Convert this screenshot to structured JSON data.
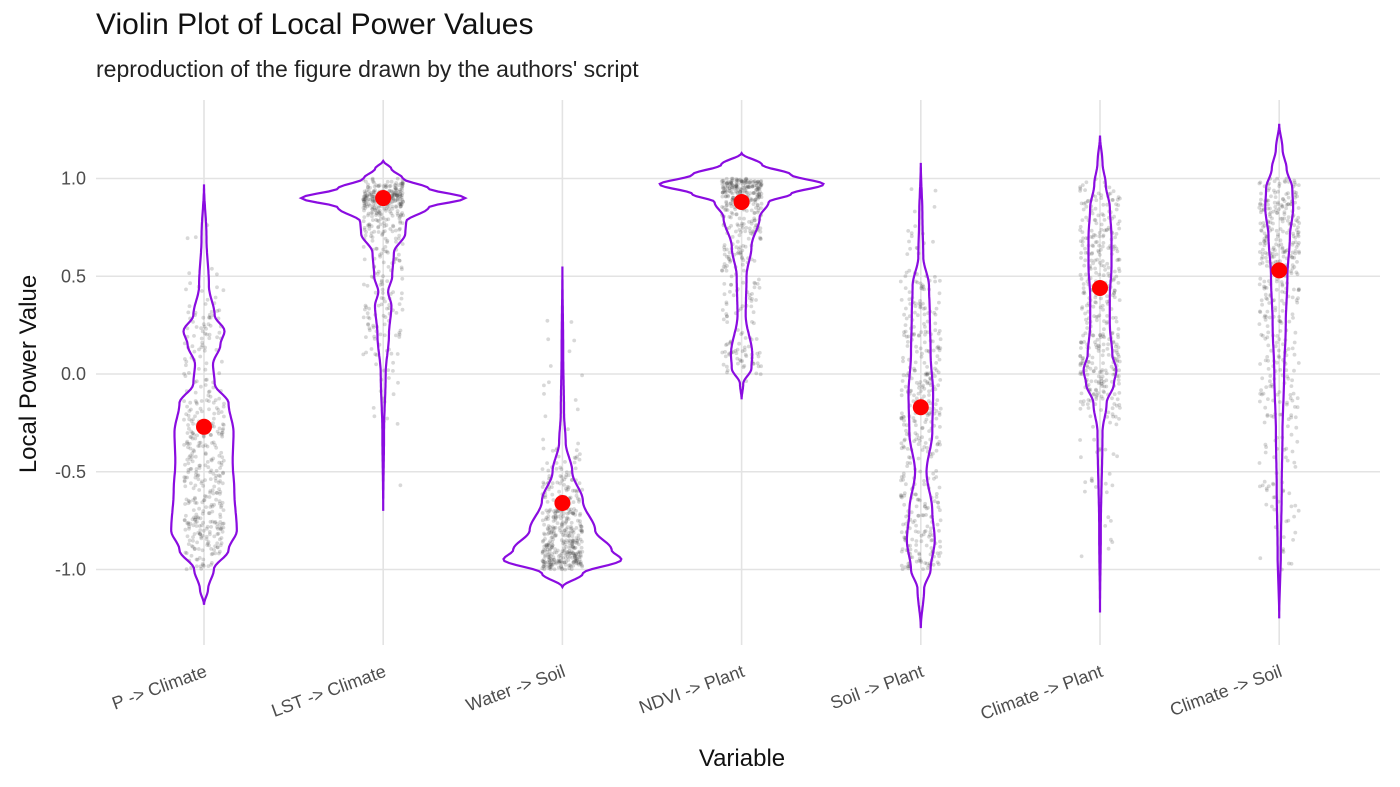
{
  "chart_data": {
    "type": "violin",
    "title": "Violin Plot of Local Power Values",
    "subtitle": "reproduction of the figure drawn by the authors' script",
    "xlabel": "Variable",
    "ylabel": "Local Power Value",
    "ylim": [
      -1.45,
      1.4
    ],
    "yticks": [
      -1.0,
      -0.5,
      0.0,
      0.5,
      1.0
    ],
    "ytick_labels": [
      "-1.0",
      "-0.5",
      "0.0",
      "0.5",
      "1.0"
    ],
    "grid": true,
    "colors": {
      "violin": "#8a0ce0",
      "mean": "#ff0000",
      "points": "#3a3a3a",
      "grid": "#e3e3e3"
    },
    "categories": [
      "P -> Climate",
      "LST -> Climate",
      "Water -> Soil",
      "NDVI -> Plant",
      "Soil -> Plant",
      "Climate -> Plant",
      "Climate -> Soil"
    ],
    "means": [
      -0.27,
      0.9,
      -0.66,
      0.88,
      -0.17,
      0.44,
      0.53
    ],
    "violins": [
      {
        "ymin": -1.18,
        "ymax": 0.97,
        "width_profile": [
          [
            -1.18,
            0.0
          ],
          [
            -1.1,
            0.05
          ],
          [
            -1.0,
            0.12
          ],
          [
            -0.9,
            0.3
          ],
          [
            -0.8,
            0.4
          ],
          [
            -0.6,
            0.37
          ],
          [
            -0.45,
            0.35
          ],
          [
            -0.3,
            0.36
          ],
          [
            -0.15,
            0.3
          ],
          [
            -0.05,
            0.13
          ],
          [
            0.05,
            0.11
          ],
          [
            0.15,
            0.2
          ],
          [
            0.22,
            0.25
          ],
          [
            0.3,
            0.13
          ],
          [
            0.45,
            0.06
          ],
          [
            0.7,
            0.03
          ],
          [
            0.97,
            0.0
          ]
        ]
      },
      {
        "ymin": -0.7,
        "ymax": 1.09,
        "width_profile": [
          [
            -0.7,
            0.0
          ],
          [
            -0.3,
            0.01
          ],
          [
            0.0,
            0.03
          ],
          [
            0.2,
            0.07
          ],
          [
            0.35,
            0.1
          ],
          [
            0.42,
            0.06
          ],
          [
            0.5,
            0.11
          ],
          [
            0.62,
            0.13
          ],
          [
            0.72,
            0.27
          ],
          [
            0.78,
            0.28
          ],
          [
            0.85,
            0.55
          ],
          [
            0.9,
            1.0
          ],
          [
            0.95,
            0.55
          ],
          [
            1.0,
            0.24
          ],
          [
            1.05,
            0.1
          ],
          [
            1.09,
            0.0
          ]
        ]
      },
      {
        "ymin": -1.09,
        "ymax": 0.55,
        "width_profile": [
          [
            -1.09,
            0.0
          ],
          [
            -1.02,
            0.25
          ],
          [
            -0.95,
            0.72
          ],
          [
            -0.9,
            0.6
          ],
          [
            -0.8,
            0.4
          ],
          [
            -0.65,
            0.25
          ],
          [
            -0.5,
            0.12
          ],
          [
            -0.35,
            0.04
          ],
          [
            -0.2,
            0.02
          ],
          [
            0.1,
            0.01
          ],
          [
            0.55,
            0.0
          ]
        ]
      },
      {
        "ymin": -0.13,
        "ymax": 1.13,
        "width_profile": [
          [
            -0.13,
            0.0
          ],
          [
            -0.05,
            0.02
          ],
          [
            0.03,
            0.12
          ],
          [
            0.1,
            0.13
          ],
          [
            0.3,
            0.05
          ],
          [
            0.5,
            0.06
          ],
          [
            0.65,
            0.12
          ],
          [
            0.8,
            0.22
          ],
          [
            0.88,
            0.33
          ],
          [
            0.92,
            0.6
          ],
          [
            0.97,
            1.0
          ],
          [
            1.02,
            0.6
          ],
          [
            1.07,
            0.25
          ],
          [
            1.13,
            0.0
          ]
        ]
      },
      {
        "ymin": -1.3,
        "ymax": 1.08,
        "width_profile": [
          [
            -1.3,
            0.0
          ],
          [
            -1.1,
            0.04
          ],
          [
            -1.0,
            0.12
          ],
          [
            -0.85,
            0.17
          ],
          [
            -0.7,
            0.14
          ],
          [
            -0.5,
            0.07
          ],
          [
            -0.3,
            0.14
          ],
          [
            -0.1,
            0.15
          ],
          [
            0.1,
            0.12
          ],
          [
            0.3,
            0.11
          ],
          [
            0.45,
            0.1
          ],
          [
            0.6,
            0.03
          ],
          [
            0.8,
            0.02
          ],
          [
            1.08,
            0.0
          ]
        ]
      },
      {
        "ymin": -1.22,
        "ymax": 1.22,
        "width_profile": [
          [
            -1.22,
            0.0
          ],
          [
            -0.8,
            0.01
          ],
          [
            -0.3,
            0.03
          ],
          [
            -0.15,
            0.08
          ],
          [
            -0.05,
            0.17
          ],
          [
            0.02,
            0.2
          ],
          [
            0.1,
            0.15
          ],
          [
            0.25,
            0.12
          ],
          [
            0.4,
            0.12
          ],
          [
            0.55,
            0.14
          ],
          [
            0.7,
            0.14
          ],
          [
            0.85,
            0.12
          ],
          [
            0.97,
            0.07
          ],
          [
            1.08,
            0.03
          ],
          [
            1.22,
            0.0
          ]
        ]
      },
      {
        "ymin": -1.25,
        "ymax": 1.28,
        "width_profile": [
          [
            -1.25,
            0.0
          ],
          [
            -0.9,
            0.02
          ],
          [
            -0.6,
            0.03
          ],
          [
            -0.3,
            0.04
          ],
          [
            0.0,
            0.06
          ],
          [
            0.25,
            0.08
          ],
          [
            0.5,
            0.1
          ],
          [
            0.7,
            0.13
          ],
          [
            0.85,
            0.17
          ],
          [
            0.95,
            0.16
          ],
          [
            1.05,
            0.09
          ],
          [
            1.15,
            0.04
          ],
          [
            1.28,
            0.0
          ]
        ]
      }
    ]
  }
}
